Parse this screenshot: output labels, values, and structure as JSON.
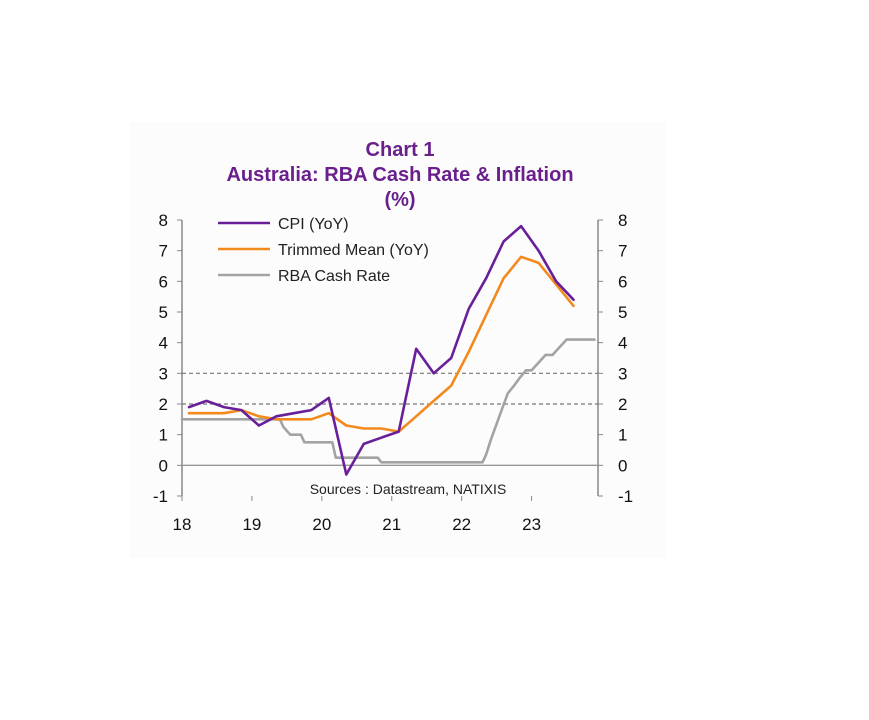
{
  "chart_data": {
    "type": "line",
    "title": "Chart 1",
    "subtitle": "Australia: RBA Cash Rate & Inflation",
    "unit": "(%)",
    "source": "Sources : Datastream, NATIXIS",
    "ylim": [
      -1,
      8
    ],
    "yticks": [
      "8",
      "7",
      "6",
      "5",
      "4",
      "3",
      "2",
      "1",
      "0",
      "-1"
    ],
    "xlim": [
      2018.0,
      2023.95
    ],
    "xticks": [
      {
        "value": 2018,
        "label": "18"
      },
      {
        "value": 2019,
        "label": "19"
      },
      {
        "value": 2020,
        "label": "20"
      },
      {
        "value": 2021,
        "label": "21"
      },
      {
        "value": 2022,
        "label": "22"
      },
      {
        "value": 2023,
        "label": "23"
      }
    ],
    "reference_lines": [
      2,
      3
    ],
    "legend_position": "top-left",
    "series": [
      {
        "name": "CPI (YoY)",
        "color": "#6a1f9a",
        "points": [
          [
            2018.1,
            1.9
          ],
          [
            2018.35,
            2.1
          ],
          [
            2018.6,
            1.9
          ],
          [
            2018.85,
            1.8
          ],
          [
            2019.1,
            1.3
          ],
          [
            2019.35,
            1.6
          ],
          [
            2019.6,
            1.7
          ],
          [
            2019.85,
            1.8
          ],
          [
            2020.1,
            2.2
          ],
          [
            2020.35,
            -0.3
          ],
          [
            2020.6,
            0.7
          ],
          [
            2020.85,
            0.9
          ],
          [
            2021.1,
            1.1
          ],
          [
            2021.35,
            3.8
          ],
          [
            2021.6,
            3.0
          ],
          [
            2021.85,
            3.5
          ],
          [
            2022.1,
            5.1
          ],
          [
            2022.35,
            6.1
          ],
          [
            2022.6,
            7.3
          ],
          [
            2022.85,
            7.8
          ],
          [
            2023.1,
            7.0
          ],
          [
            2023.35,
            6.0
          ],
          [
            2023.6,
            5.4
          ]
        ]
      },
      {
        "name": "Trimmed Mean (YoY)",
        "color": "#f28a1e",
        "points": [
          [
            2018.1,
            1.7
          ],
          [
            2018.35,
            1.7
          ],
          [
            2018.6,
            1.7
          ],
          [
            2018.85,
            1.8
          ],
          [
            2019.1,
            1.6
          ],
          [
            2019.35,
            1.5
          ],
          [
            2019.6,
            1.5
          ],
          [
            2019.85,
            1.5
          ],
          [
            2020.1,
            1.7
          ],
          [
            2020.35,
            1.3
          ],
          [
            2020.6,
            1.2
          ],
          [
            2020.85,
            1.2
          ],
          [
            2021.1,
            1.1
          ],
          [
            2021.35,
            1.6
          ],
          [
            2021.6,
            2.1
          ],
          [
            2021.85,
            2.6
          ],
          [
            2022.1,
            3.7
          ],
          [
            2022.35,
            4.9
          ],
          [
            2022.6,
            6.1
          ],
          [
            2022.85,
            6.8
          ],
          [
            2023.1,
            6.6
          ],
          [
            2023.35,
            5.9
          ],
          [
            2023.6,
            5.2
          ]
        ]
      },
      {
        "name": "RBA Cash Rate",
        "color": "#a3a3a3",
        "points": [
          [
            2018.0,
            1.5
          ],
          [
            2019.4,
            1.5
          ],
          [
            2019.45,
            1.25
          ],
          [
            2019.55,
            1.0
          ],
          [
            2019.7,
            1.0
          ],
          [
            2019.75,
            0.75
          ],
          [
            2020.15,
            0.75
          ],
          [
            2020.2,
            0.25
          ],
          [
            2020.8,
            0.25
          ],
          [
            2020.85,
            0.1
          ],
          [
            2022.3,
            0.1
          ],
          [
            2022.35,
            0.35
          ],
          [
            2022.42,
            0.85
          ],
          [
            2022.5,
            1.35
          ],
          [
            2022.58,
            1.85
          ],
          [
            2022.66,
            2.35
          ],
          [
            2022.75,
            2.6
          ],
          [
            2022.83,
            2.85
          ],
          [
            2022.92,
            3.1
          ],
          [
            2023.0,
            3.1
          ],
          [
            2023.1,
            3.35
          ],
          [
            2023.2,
            3.6
          ],
          [
            2023.3,
            3.6
          ],
          [
            2023.4,
            3.85
          ],
          [
            2023.5,
            4.1
          ],
          [
            2023.9,
            4.1
          ]
        ]
      }
    ]
  }
}
